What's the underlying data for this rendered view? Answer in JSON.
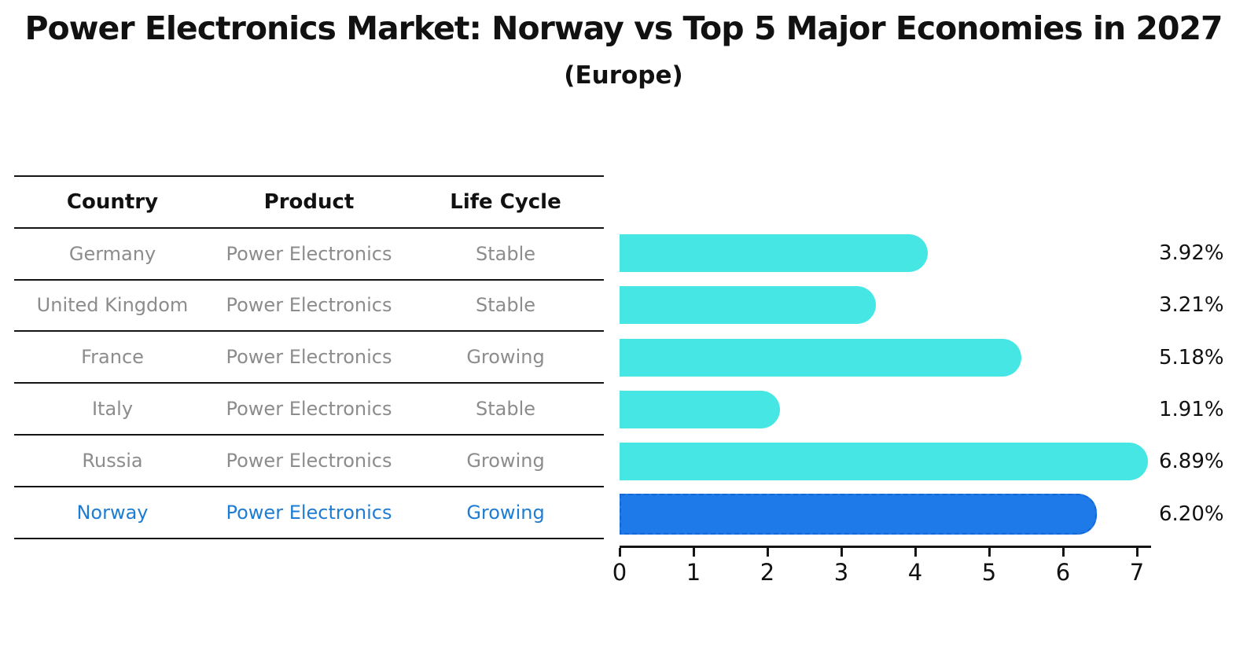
{
  "title": "Power Electronics Market: Norway vs Top 5 Major Economies in 2027",
  "subtitle": "(Europe)",
  "table": {
    "headers": [
      "Country",
      "Product",
      "Life Cycle"
    ],
    "rows": [
      {
        "country": "Germany",
        "product": "Power Electronics",
        "life_cycle": "Stable"
      },
      {
        "country": "United Kingdom",
        "product": "Power Electronics",
        "life_cycle": "Stable"
      },
      {
        "country": "France",
        "product": "Power Electronics",
        "life_cycle": "Growing"
      },
      {
        "country": "Italy",
        "product": "Power Electronics",
        "life_cycle": "Stable"
      },
      {
        "country": "Russia",
        "product": "Power Electronics",
        "life_cycle": "Growing"
      },
      {
        "country": "Norway",
        "product": "Power Electronics",
        "life_cycle": "Growing"
      }
    ],
    "highlighted_row": "Norway"
  },
  "chart_data": {
    "type": "bar",
    "orientation": "horizontal",
    "title": "Power Electronics Market: Norway vs Top 5 Major Economies in 2027",
    "subtitle": "(Europe)",
    "categories": [
      "Germany",
      "United Kingdom",
      "France",
      "Italy",
      "Russia",
      "Norway"
    ],
    "values": [
      3.92,
      3.21,
      5.18,
      1.91,
      6.89,
      6.2
    ],
    "value_labels": [
      "3.92%",
      "3.21%",
      "5.18%",
      "1.91%",
      "6.89%",
      "6.20%"
    ],
    "xlim": [
      0,
      7
    ],
    "xticks": [
      0,
      1,
      2,
      3,
      4,
      5,
      6,
      7
    ],
    "grid": false,
    "legend": false,
    "highlight_index": 5
  },
  "colors": {
    "bar": "#46e6e4",
    "bar_highlight": "#1e7ae8",
    "bar_highlight_edge": "#1467d6",
    "text_highlight": "#1e7cd2",
    "row_text": "#8c8c8c",
    "line": "#151515",
    "background": "#ffffff"
  }
}
